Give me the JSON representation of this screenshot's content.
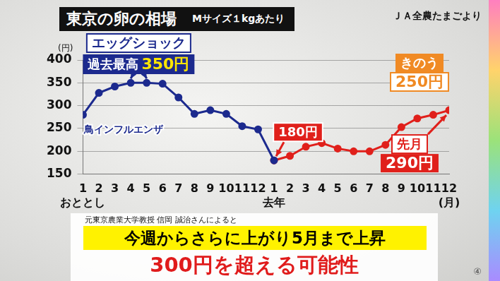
{
  "chart_data": {
    "type": "line",
    "title": "東京の卵の相場",
    "subtitle": "Mサイズ１kgあたり",
    "source": "ＪＡ全農たまごより",
    "y_unit": "(円)",
    "categories": [
      [
        "1",
        "おととし"
      ],
      "2",
      "3",
      "4",
      "5",
      "6",
      "7",
      "8",
      "9",
      "10",
      "11",
      "12",
      [
        "1",
        "去年"
      ],
      "2",
      "3",
      "4",
      "5",
      "6",
      "7",
      "8",
      "9",
      "10",
      "11",
      [
        "12",
        "(月)"
      ]
    ],
    "series": [
      {
        "color": "#1c2a8e",
        "marker": "circle",
        "values": [
          280,
          328,
          342,
          350,
          350,
          348,
          318,
          282,
          290,
          282,
          255,
          248,
          180,
          null,
          null,
          null,
          null,
          null,
          null,
          null,
          null,
          null,
          null,
          null
        ]
      },
      {
        "color": "#e0201b",
        "marker": "circle",
        "values": [
          null,
          null,
          null,
          null,
          null,
          null,
          null,
          null,
          null,
          null,
          null,
          null,
          180,
          190,
          210,
          218,
          206,
          200,
          200,
          214,
          253,
          272,
          280,
          290
        ]
      }
    ],
    "ylim": [
      150,
      400
    ],
    "yticks": [
      150,
      200,
      250,
      300,
      350,
      400
    ],
    "grid": true,
    "legend": "none",
    "annotations": {
      "egg_shock": {
        "text": "エッグショック",
        "label": "過去最高",
        "value": 350,
        "value_label": "350円"
      },
      "bird_flu": {
        "text": "鳥インフルエンザ"
      },
      "low": {
        "value": 180,
        "label": "180円"
      },
      "yesterday": {
        "text": "きのう",
        "label": "250円"
      },
      "last_month": {
        "text": "先月",
        "value": 290,
        "label": "290円"
      }
    },
    "footer": {
      "note": "元東京農業大学教授 信岡 誠治さんによると",
      "headline": "今週からさらに上がり5月まで上昇",
      "highlight": "300円を超える可能性",
      "page_mark": "④"
    }
  }
}
